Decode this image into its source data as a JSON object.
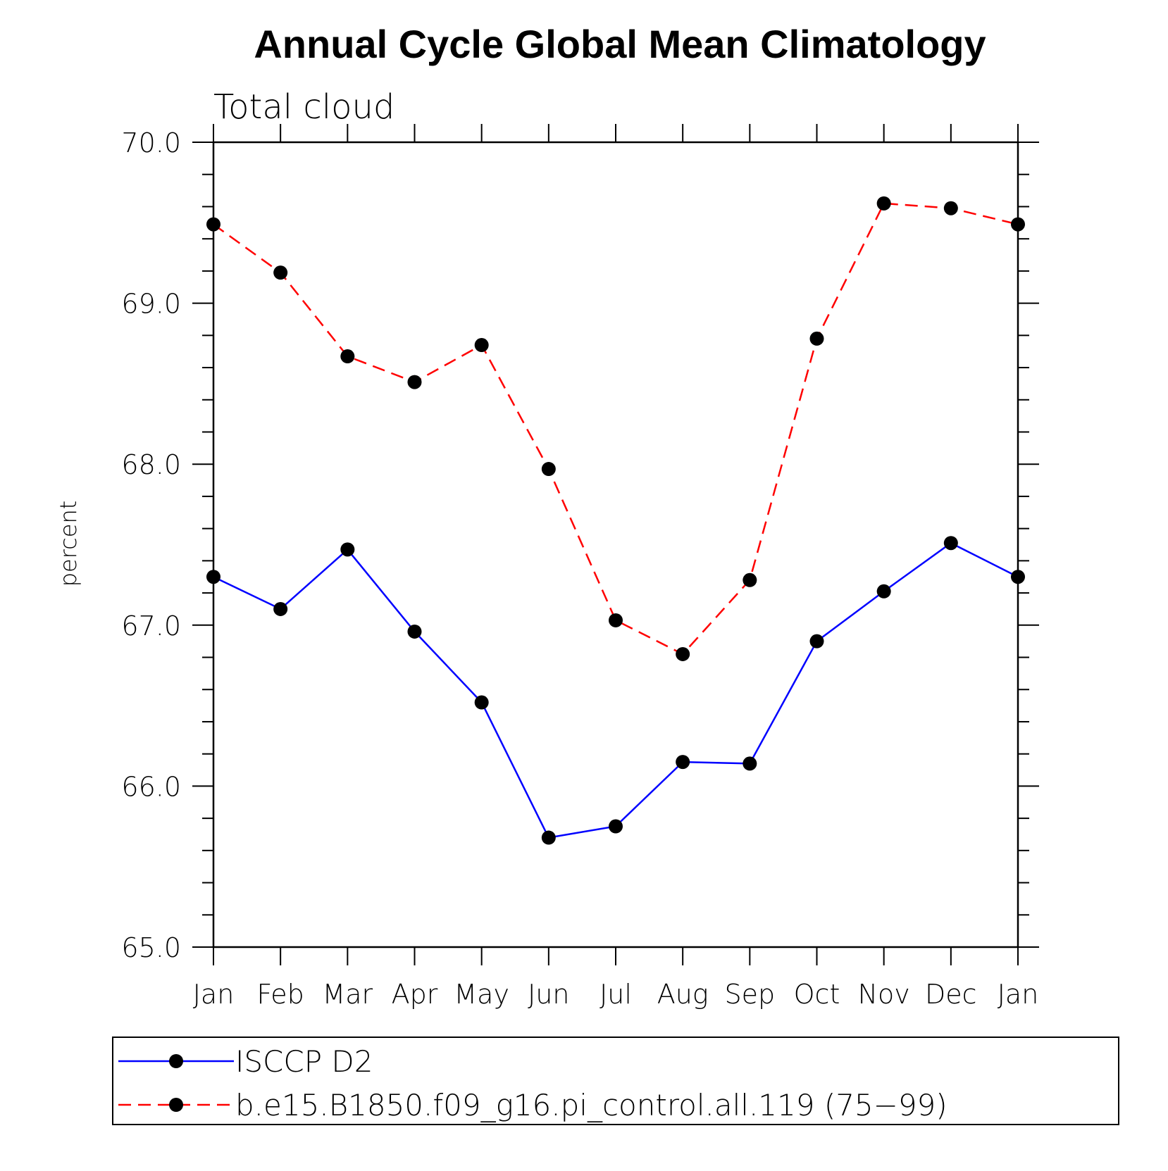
{
  "chart_data": {
    "type": "line",
    "title": "Annual Cycle Global Mean Climatology",
    "subtitle": "Total cloud",
    "xlabel": "",
    "ylabel": "percent",
    "categories": [
      "Jan",
      "Feb",
      "Mar",
      "Apr",
      "May",
      "Jun",
      "Jul",
      "Aug",
      "Sep",
      "Oct",
      "Nov",
      "Dec",
      "Jan"
    ],
    "ylim": [
      65.0,
      70.0
    ],
    "yticks": [
      "65.0",
      "66.0",
      "67.0",
      "68.0",
      "69.0",
      "70.0"
    ],
    "yminor_step": 0.2,
    "grid": false,
    "legend_position": "bottom",
    "series": [
      {
        "name": "ISCCP D2",
        "color": "#0000ff",
        "line_style": "solid",
        "marker": "filled-circle",
        "values": [
          67.3,
          67.1,
          67.47,
          66.96,
          66.52,
          65.68,
          65.75,
          66.15,
          66.14,
          66.9,
          67.21,
          67.51,
          67.3
        ]
      },
      {
        "name": "b.e15.B1850.f09_g16.pi_control.all.119 (75−99)",
        "color": "#ff0000",
        "line_style": "dashed",
        "marker": "filled-circle",
        "values": [
          69.49,
          69.19,
          68.67,
          68.51,
          68.74,
          67.97,
          67.03,
          66.82,
          67.28,
          68.78,
          69.62,
          69.59,
          69.49
        ]
      }
    ]
  }
}
